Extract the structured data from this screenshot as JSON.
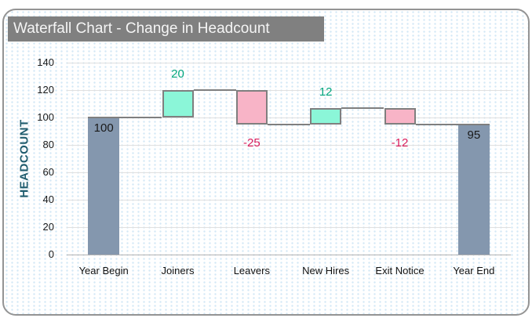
{
  "window": {
    "frame_border_color": "#949494",
    "background_dot_color": "#d3e8f6"
  },
  "title_bar": {
    "bg": "#808080",
    "text_color": "#f5f5f5"
  },
  "chart_data": {
    "type": "bar",
    "subtype": "waterfall",
    "title": "Waterfall Chart - Change in Headcount",
    "xlabel": "",
    "ylabel": "HEADCOUNT",
    "ylim": [
      0,
      140
    ],
    "ytick_step": 20,
    "yticks": [
      0,
      20,
      40,
      60,
      80,
      100,
      120,
      140
    ],
    "grid": true,
    "legend": "none",
    "categories": [
      "Year Begin",
      "Joiners",
      "Leavers",
      "New Hires",
      "Exit Notice",
      "Year End"
    ],
    "bars": [
      {
        "category": "Year Begin",
        "kind": "total",
        "value": 100,
        "base": 0,
        "top": 100,
        "data_label": "100",
        "label_pos": "inside-top"
      },
      {
        "category": "Joiners",
        "kind": "increase",
        "value": 20,
        "base": 100,
        "top": 120,
        "data_label": "20",
        "label_pos": "above"
      },
      {
        "category": "Leavers",
        "kind": "decrease",
        "value": -25,
        "base": 95,
        "top": 120,
        "data_label": "-25",
        "label_pos": "below"
      },
      {
        "category": "New Hires",
        "kind": "increase",
        "value": 12,
        "base": 95,
        "top": 107,
        "data_label": "12",
        "label_pos": "above"
      },
      {
        "category": "Exit Notice",
        "kind": "decrease",
        "value": -12,
        "base": 95,
        "top": 107,
        "data_label": "-12",
        "label_pos": "below"
      },
      {
        "category": "Year End",
        "kind": "total",
        "value": 95,
        "base": 0,
        "top": 95,
        "data_label": "95",
        "label_pos": "inside-top"
      }
    ],
    "connector_levels": [
      100,
      120,
      95,
      107,
      95
    ],
    "colors": {
      "total_fill": "#8497ae",
      "increase_fill": "#8bf6d8",
      "decrease_fill": "#f8b4c7",
      "bar_border": "#7f7f7f",
      "connector": "#7f7f7f",
      "label_increase": "#00a57d",
      "label_decrease": "#d91c5c",
      "label_total": "#1a1a1a",
      "gridline": "#e0e0e0",
      "zero_line": "#b3b3b3",
      "ylabel_color": "#1f5c6e"
    }
  }
}
